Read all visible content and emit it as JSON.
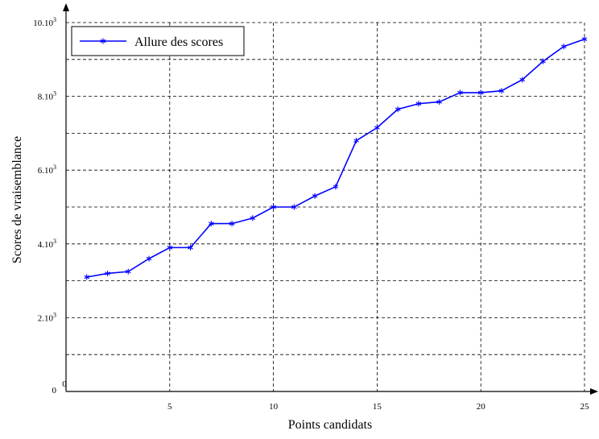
{
  "chart_data": {
    "type": "line",
    "title": "",
    "xlabel": "Points candidats",
    "ylabel": "Scores de vraisemblance",
    "xlim": [
      0,
      25
    ],
    "ylim": [
      0,
      10000
    ],
    "x_ticks": [
      {
        "value": 0,
        "label": "0"
      },
      {
        "value": 5,
        "label": "5"
      },
      {
        "value": 10,
        "label": "10"
      },
      {
        "value": 15,
        "label": "15"
      },
      {
        "value": 20,
        "label": "20"
      },
      {
        "value": 25,
        "label": "25"
      }
    ],
    "y_ticks": [
      {
        "value": 0,
        "label": "0"
      },
      {
        "value": 2000,
        "label": "2.10",
        "exp": "3"
      },
      {
        "value": 4000,
        "label": "4.10",
        "exp": "3"
      },
      {
        "value": 6000,
        "label": "6.10",
        "exp": "3"
      },
      {
        "value": 8000,
        "label": "8.10",
        "exp": "3"
      },
      {
        "value": 10000,
        "label": "10.10",
        "exp": "3"
      }
    ],
    "y_grid": [
      1000,
      2000,
      3000,
      4000,
      5000,
      6000,
      7000,
      8000,
      9000,
      10000
    ],
    "grid": true,
    "grid_style": "dashed",
    "legend_position": "top-left",
    "series": [
      {
        "name": "Allure des scores",
        "color": "#0000ff",
        "marker": "asterisk",
        "x": [
          1,
          2,
          3,
          4,
          5,
          6,
          7,
          8,
          9,
          10,
          11,
          12,
          13,
          14,
          15,
          16,
          17,
          18,
          19,
          20,
          21,
          22,
          23,
          24,
          25
        ],
        "values": [
          3100,
          3200,
          3250,
          3600,
          3900,
          3900,
          4550,
          4550,
          4700,
          5000,
          5000,
          5300,
          5550,
          6800,
          7150,
          7650,
          7800,
          7850,
          8100,
          8100,
          8150,
          8450,
          8950,
          9350,
          9550
        ]
      }
    ]
  }
}
